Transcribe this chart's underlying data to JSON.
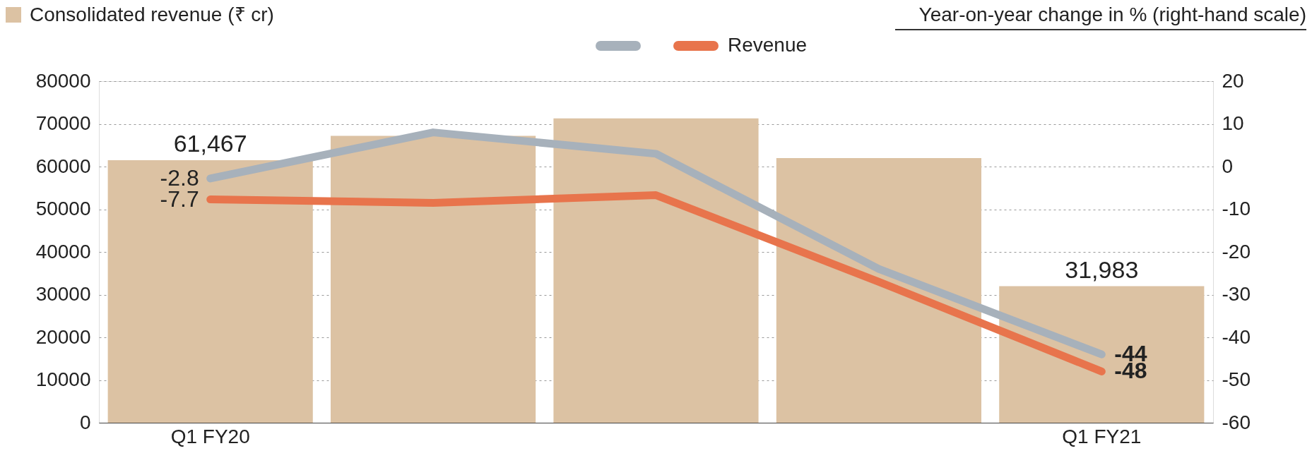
{
  "chart_data": {
    "type": "bar",
    "categories": [
      "Q1 FY20",
      null,
      null,
      null,
      "Q1 FY21"
    ],
    "legend_title": "Year-on-year change in % (right-hand scale)",
    "series": [
      {
        "name": "Consolidated revenue (₹ cr)",
        "color": "#dcc2a3",
        "values": [
          61467,
          67200,
          71300,
          62000,
          31983
        ],
        "value_labels": [
          "61,467",
          null,
          null,
          null,
          "31,983"
        ]
      },
      {
        "type": "line",
        "axis": "y2",
        "color": "#a7b1bb",
        "values": [
          -2.8,
          8,
          3,
          -24,
          -44
        ],
        "value_labels": [
          "-2.8",
          null,
          null,
          null,
          "-44"
        ]
      },
      {
        "type": "line",
        "axis": "y2",
        "name": "Revenue",
        "color": "#e8744c",
        "values": [
          -7.7,
          -8.5,
          -6.7,
          -27,
          -48
        ],
        "value_labels": [
          "-7.7",
          null,
          null,
          null,
          "-48"
        ]
      }
    ],
    "ylim": [
      0,
      80000
    ],
    "yticks": [
      0,
      10000,
      20000,
      30000,
      40000,
      50000,
      60000,
      70000,
      80000
    ],
    "y2lim": [
      -60,
      20
    ],
    "y2ticks": [
      -60,
      -50,
      -40,
      -30,
      -20,
      -10,
      0,
      10,
      20
    ],
    "grid": "y",
    "legend": "top"
  }
}
